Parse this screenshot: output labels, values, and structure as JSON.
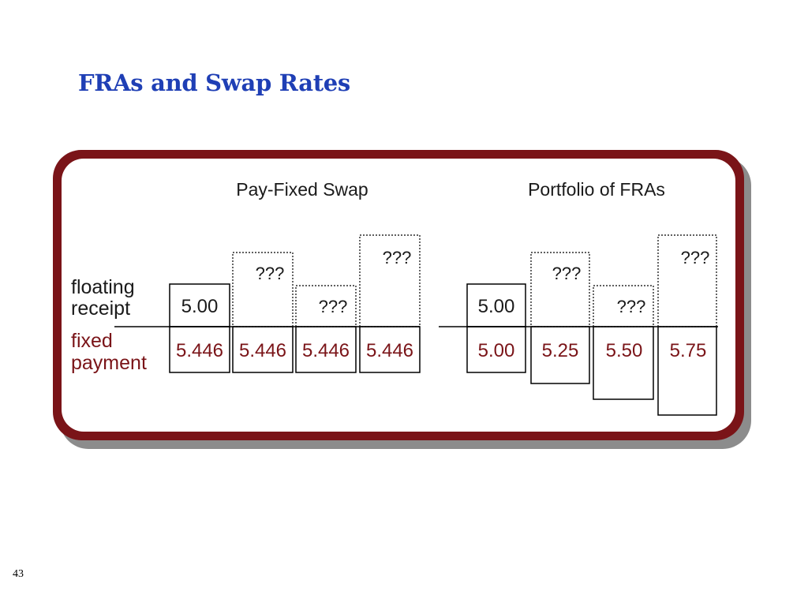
{
  "slide": {
    "title": "FRAs and Swap Rates",
    "page_number": "43"
  },
  "colors": {
    "title": "#1f3fb5",
    "frame": "#7a1418",
    "label_dark": "#1a1a1a",
    "label_red": "#7a1418"
  },
  "diagram": {
    "row_labels": {
      "floating_line1": "floating",
      "floating_line2": "receipt",
      "fixed_line1": "fixed",
      "fixed_line2": "payment"
    },
    "panels": [
      {
        "title": "Pay-Fixed Swap",
        "periods": [
          {
            "floating": "5.00",
            "fixed": "5.446"
          },
          {
            "floating": "???",
            "fixed": "5.446"
          },
          {
            "floating": "???",
            "fixed": "5.446"
          },
          {
            "floating": "???",
            "fixed": "5.446"
          }
        ]
      },
      {
        "title": "Portfolio of FRAs",
        "periods": [
          {
            "floating": "5.00",
            "fixed": "5.00"
          },
          {
            "floating": "???",
            "fixed": "5.25"
          },
          {
            "floating": "???",
            "fixed": "5.50"
          },
          {
            "floating": "???",
            "fixed": "5.75"
          }
        ]
      }
    ]
  }
}
